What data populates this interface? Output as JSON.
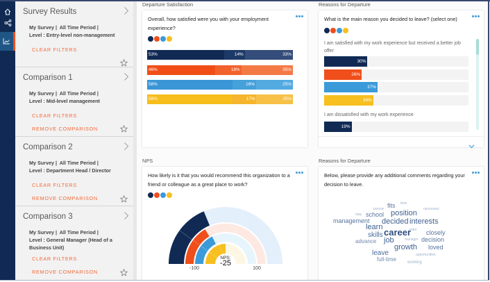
{
  "nav": {
    "items": [
      {
        "icon": "home-icon"
      },
      {
        "icon": "network-icon"
      },
      {
        "icon": "chart-icon",
        "active": true
      }
    ]
  },
  "colors": {
    "navy": "#102a54",
    "orange": "#f04e1a",
    "blue": "#3c9ad9",
    "yellow": "#f7bf1f",
    "accent": "#f26b3a",
    "link": "#4aa3dc",
    "active_nav": "#1f5686"
  },
  "sidebar": {
    "panels": [
      {
        "title": "Survey Results",
        "filters": [
          "My Survey |  All Time Period |",
          "Level : Entry-level non-management"
        ],
        "clear_filters": "CLEAR FILTERS"
      },
      {
        "title": "Comparison 1",
        "filters": [
          "My Survey |  All Time Period |",
          "Level : Mid-level management"
        ],
        "clear_filters": "CLEAR FILTERS",
        "remove": "REMOVE COMPARISON"
      },
      {
        "title": "Comparison 2",
        "filters": [
          "My Survey |  All Time Period |",
          "Level : Department Head / Director"
        ],
        "clear_filters": "CLEAR FILTERS",
        "remove": "REMOVE COMPARISON"
      },
      {
        "title": "Comparison 3",
        "filters": [
          "My Survey |  All Time Period |",
          "Level : General Manager (Head of a Business Unit)"
        ],
        "clear_filters": "CLEAR FILTERS",
        "remove": "REMOVE COMPARISON"
      }
    ]
  },
  "sections": {
    "top_left": "Departure Satisfaction",
    "top_right": "Reasons for Departure",
    "bottom_left": "NPS",
    "bottom_right": "Reasons for Departure"
  },
  "legend_colors": [
    "#102a54",
    "#f04e1a",
    "#3c9ad9",
    "#f7bf1f"
  ],
  "cards": {
    "satisfaction": {
      "question": "Overall, how satisfied were you with your employment experience?",
      "rows": [
        {
          "values": [
            53,
            14,
            33
          ],
          "colors": [
            "#102a54",
            "#1d3968",
            "#344d7a"
          ]
        },
        {
          "values": [
            46,
            18,
            35
          ],
          "colors": [
            "#f04e16",
            "#f2622c",
            "#f47a45"
          ]
        },
        {
          "values": [
            58,
            16,
            25
          ],
          "colors": [
            "#3a96d6",
            "#45a0db",
            "#52aae0"
          ]
        },
        {
          "values": [
            58,
            17,
            25
          ],
          "colors": [
            "#f6bd1c",
            "#f5b52c",
            "#f6c146"
          ]
        }
      ]
    },
    "reasons": {
      "question": "What is the main reason you decided to leave? (select one)",
      "options": [
        {
          "label": "I am satisfied with my work experience but received a better job offer",
          "values": [
            30,
            26,
            37,
            34
          ]
        },
        {
          "label": "I am dissatisfied with my work experience",
          "values": [
            19
          ]
        }
      ]
    },
    "nps": {
      "question": "How likely is it that you would recommend this organization to a friend or colleague as a great place to work?",
      "center_label": "NPS:",
      "center_value": "-25",
      "axis": {
        "min": -100,
        "max": 100,
        "min_label": "-100",
        "max_label": "100"
      },
      "series": [
        {
          "value": -25,
          "color": "#102a54",
          "track": "#e4effc"
        },
        {
          "value": -34,
          "color": "#f04e1a",
          "track": "#fde9e2"
        },
        {
          "value": -29,
          "color": "#3c9ad9",
          "track": "#e6f4fc"
        },
        {
          "value": 0,
          "color": "#f7bf1f",
          "track": "#fdf6e2"
        }
      ]
    },
    "comments": {
      "question": "Below, please provide any additional comments regarding your decision to leave.",
      "words": [
        {
          "text": "fits",
          "weight": 3
        },
        {
          "text": "time",
          "weight": 1
        },
        {
          "text": "pursue",
          "weight": 1
        },
        {
          "text": "necessary",
          "weight": 1
        },
        {
          "text": "stay",
          "weight": 1
        },
        {
          "text": "school",
          "weight": 3
        },
        {
          "text": "position",
          "weight": 4
        },
        {
          "text": "management",
          "weight": 3
        },
        {
          "text": "decided",
          "weight": 4
        },
        {
          "text": "interests",
          "weight": 4
        },
        {
          "text": "learn",
          "weight": 4
        },
        {
          "text": "career",
          "weight": 5
        },
        {
          "text": "order",
          "weight": 1
        },
        {
          "text": "closely",
          "weight": 3
        },
        {
          "text": "skills",
          "weight": 3
        },
        {
          "text": "manager",
          "weight": 1
        },
        {
          "text": "decision",
          "weight": 3
        },
        {
          "text": "advance",
          "weight": 2
        },
        {
          "text": "job",
          "weight": 4
        },
        {
          "text": "growth",
          "weight": 4
        },
        {
          "text": "loved",
          "weight": 3
        },
        {
          "text": "leave",
          "weight": 3
        },
        {
          "text": "opportunities",
          "weight": 1
        },
        {
          "text": "full-time",
          "weight": 2
        },
        {
          "text": "working",
          "weight": 1
        }
      ]
    }
  }
}
